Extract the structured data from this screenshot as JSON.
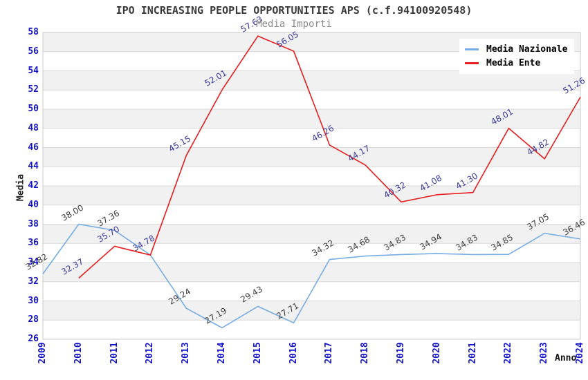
{
  "title": "IPO INCREASING PEOPLE OPPORTUNITIES APS (c.f.94100920548)",
  "subtitle": "Media Importi",
  "chart_data": {
    "type": "line",
    "x": [
      2009,
      2010,
      2011,
      2012,
      2013,
      2014,
      2015,
      2016,
      2017,
      2018,
      2019,
      2020,
      2021,
      2022,
      2023,
      2024
    ],
    "xlabel": "Anno",
    "ylabel": "Media",
    "ylim": [
      26,
      58
    ],
    "ytick_step": 2,
    "yticks": [
      26,
      28,
      30,
      32,
      34,
      36,
      38,
      40,
      42,
      44,
      46,
      48,
      50,
      52,
      54,
      56,
      58
    ],
    "grid": "horizontal-bands",
    "legend_position": "top-right",
    "series": [
      {
        "name": "Media Nazionale",
        "color": "#76ade4",
        "label_color": "#3c3c3c",
        "x_start_index": 0,
        "values": [
          32.82,
          38.0,
          37.36,
          34.78,
          29.24,
          27.19,
          29.43,
          27.71,
          34.32,
          34.68,
          34.83,
          34.94,
          34.83,
          34.85,
          37.05,
          36.46
        ],
        "labels": [
          "32.82",
          "38.00",
          "37.36",
          null,
          "29.24",
          "27.19",
          "29.43",
          "27.71",
          "34.32",
          "34.68",
          "34.83",
          "34.94",
          "34.83",
          "34.85",
          "37.05",
          "36.46"
        ]
      },
      {
        "name": "Media Ente",
        "color": "#e81c1c",
        "label_color": "#38389b",
        "x_start_index": 1,
        "values": [
          32.37,
          35.7,
          34.78,
          45.15,
          52.01,
          57.63,
          56.05,
          46.26,
          44.17,
          40.32,
          41.08,
          41.3,
          48.01,
          44.82,
          51.26
        ],
        "labels": [
          "32.37",
          "35.70",
          "34.78",
          "45.15",
          "52.01",
          "57.63",
          "56.05",
          "46.26",
          "44.17",
          "40.32",
          "41.08",
          "41.30",
          "48.01",
          "44.82",
          "51.26"
        ]
      }
    ]
  },
  "colors": {
    "tick_label": "#1414cc",
    "band_gray": "#f1f1f1",
    "band_white": "#ffffff",
    "gridline": "#d9d9d9",
    "plot_border": "#c9c9c9",
    "title": "#3a3a3a",
    "subtitle": "#8a8a8a"
  }
}
